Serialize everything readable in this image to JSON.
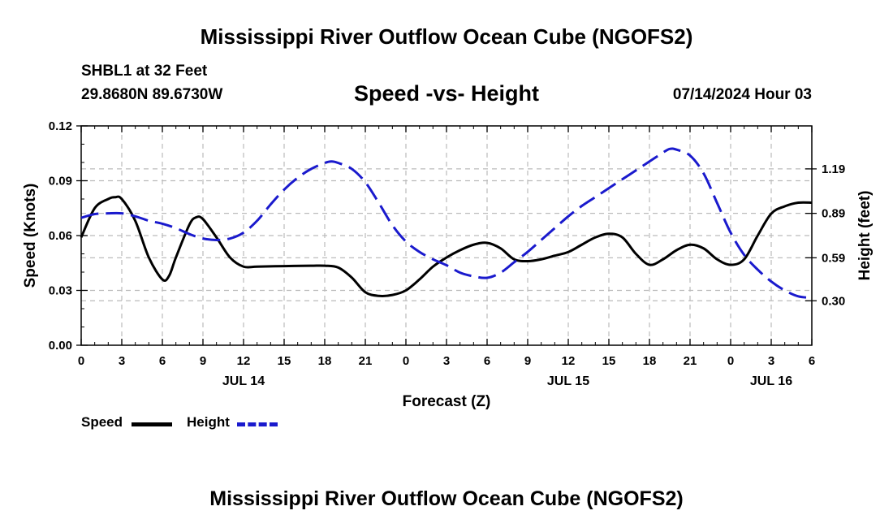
{
  "header": {
    "title": "Mississippi River Outflow Ocean Cube (NGOFS2)",
    "station": "SHBL1 at 32 Feet",
    "coords": "29.8680N  89.6730W",
    "chart_title": "Speed -vs- Height",
    "datetime": "07/14/2024 Hour 03"
  },
  "footer": {
    "title": "Mississippi River Outflow Ocean Cube (NGOFS2)"
  },
  "legend": {
    "speed_label": "Speed",
    "height_label": "Height"
  },
  "colors": {
    "speed": "#000000",
    "height": "#1a1acd",
    "grid": "#bbbbbb"
  },
  "chart_data": {
    "type": "line",
    "xlabel": "Forecast (Z)",
    "ylabel_left": "Speed (Knots)",
    "ylabel_right": "Height (feet)",
    "xlim": [
      0,
      54
    ],
    "x_ticks": [
      0,
      3,
      6,
      9,
      12,
      15,
      18,
      21,
      24,
      27,
      30,
      33,
      36,
      39,
      42,
      45,
      48,
      51,
      54
    ],
    "x_tick_labels": [
      "0",
      "3",
      "6",
      "9",
      "12",
      "15",
      "18",
      "21",
      "0",
      "3",
      "6",
      "9",
      "12",
      "15",
      "18",
      "21",
      "0",
      "3",
      "6"
    ],
    "day_labels": [
      {
        "x": 12,
        "label": "JUL 14"
      },
      {
        "x": 36,
        "label": "JUL 15"
      },
      {
        "x": 51,
        "label": "JUL 16"
      }
    ],
    "ylim_left": [
      0,
      0.12
    ],
    "y_ticks_left": [
      0.0,
      0.03,
      0.06,
      0.09,
      0.12
    ],
    "y_tick_labels_left": [
      "0.00",
      "0.03",
      "0.06",
      "0.09",
      "0.12"
    ],
    "ylim_right": [
      0.0,
      1.48
    ],
    "y_ticks_right": [
      0.3,
      0.59,
      0.89,
      1.19
    ],
    "y_tick_labels_right": [
      "0.30",
      "0.59",
      "0.89",
      "1.19"
    ],
    "series": [
      {
        "name": "Speed",
        "axis": "left",
        "style": "solid",
        "x": [
          0,
          1,
          2,
          2.5,
          3,
          4,
          5,
          6,
          6.5,
          7,
          8,
          8.5,
          9,
          10,
          11,
          12,
          13,
          15,
          17,
          18,
          19,
          20,
          21,
          22,
          23,
          24,
          25,
          26,
          27,
          28,
          29,
          30,
          31,
          32,
          33,
          34,
          35,
          36,
          37,
          38,
          39,
          40,
          41,
          42,
          43,
          44,
          45,
          46,
          47,
          48,
          49,
          50,
          51,
          52,
          53,
          54
        ],
        "y": [
          0.059,
          0.075,
          0.08,
          0.081,
          0.08,
          0.068,
          0.048,
          0.036,
          0.038,
          0.048,
          0.066,
          0.07,
          0.069,
          0.059,
          0.048,
          0.043,
          0.043,
          0.0433,
          0.0435,
          0.0435,
          0.0425,
          0.037,
          0.029,
          0.027,
          0.0275,
          0.03,
          0.036,
          0.043,
          0.048,
          0.052,
          0.055,
          0.056,
          0.053,
          0.047,
          0.046,
          0.047,
          0.049,
          0.051,
          0.055,
          0.059,
          0.061,
          0.059,
          0.05,
          0.044,
          0.047,
          0.052,
          0.055,
          0.053,
          0.047,
          0.044,
          0.047,
          0.06,
          0.072,
          0.076,
          0.078,
          0.078
        ]
      },
      {
        "name": "Height",
        "axis": "right",
        "style": "dashed",
        "x": [
          0,
          1,
          2,
          3,
          4,
          5,
          6,
          7,
          8,
          9,
          10,
          11,
          12,
          13,
          14,
          15,
          16,
          17,
          18,
          18.5,
          19,
          20,
          21,
          22,
          23,
          24,
          25,
          26,
          27,
          28,
          29,
          30,
          31,
          32,
          33,
          34,
          35,
          36,
          37,
          38,
          39,
          40,
          41,
          42,
          43,
          43.5,
          44,
          45,
          46,
          47,
          48,
          49,
          50,
          51,
          52,
          53,
          54
        ],
        "y": [
          0.86,
          0.885,
          0.89,
          0.89,
          0.87,
          0.84,
          0.82,
          0.79,
          0.75,
          0.72,
          0.71,
          0.72,
          0.76,
          0.84,
          0.95,
          1.05,
          1.13,
          1.19,
          1.23,
          1.24,
          1.23,
          1.19,
          1.1,
          0.96,
          0.81,
          0.7,
          0.63,
          0.58,
          0.54,
          0.49,
          0.465,
          0.455,
          0.49,
          0.56,
          0.63,
          0.71,
          0.79,
          0.87,
          0.94,
          1.0,
          1.06,
          1.12,
          1.18,
          1.24,
          1.3,
          1.325,
          1.32,
          1.28,
          1.16,
          0.96,
          0.76,
          0.61,
          0.51,
          0.43,
          0.37,
          0.33,
          0.32
        ]
      }
    ]
  }
}
